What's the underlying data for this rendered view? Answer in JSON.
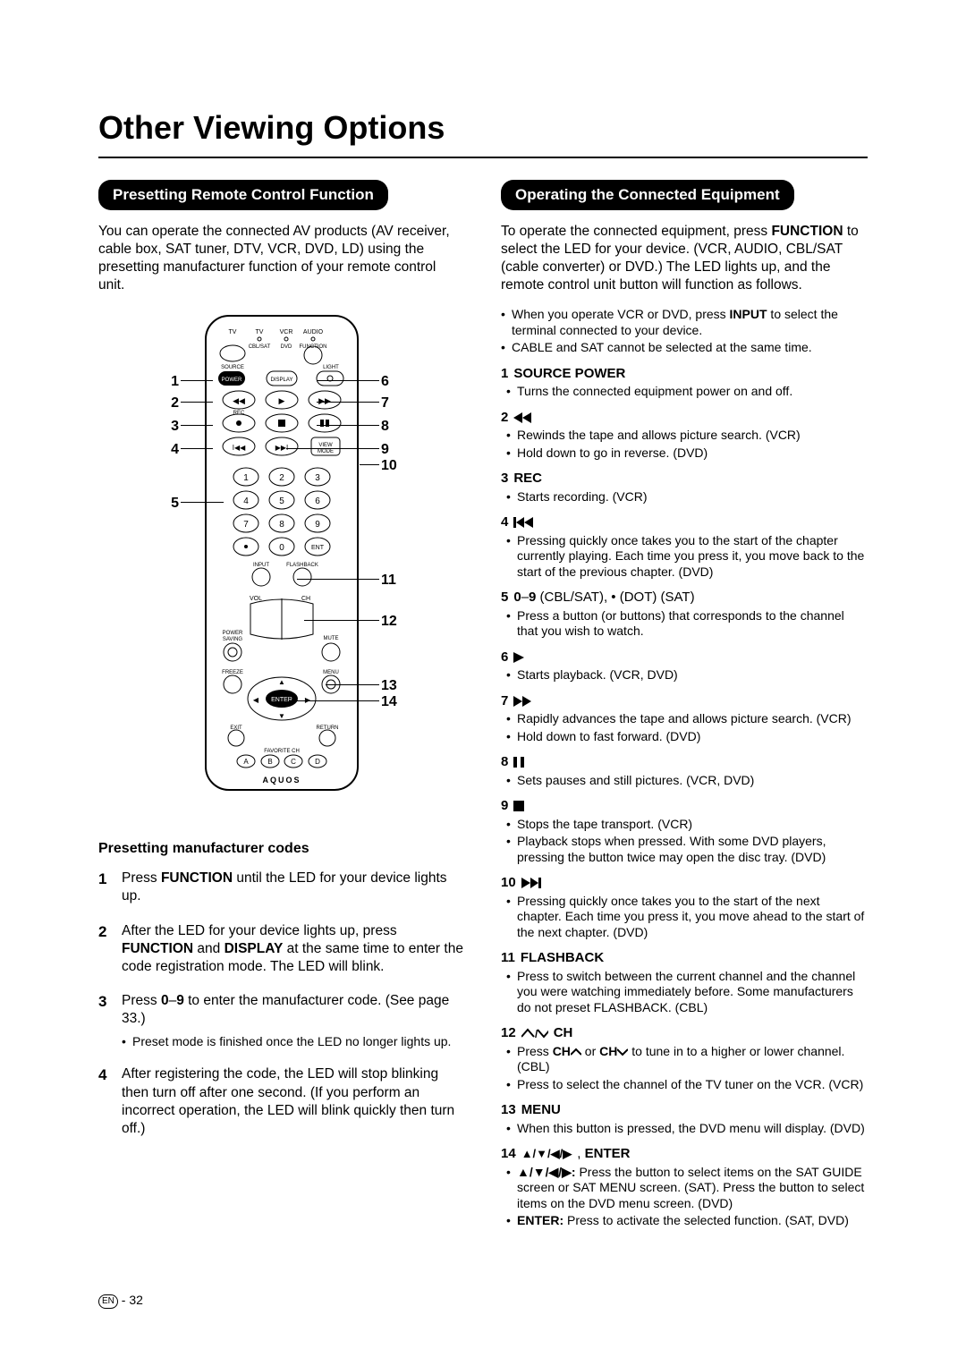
{
  "page_title": "Other Viewing Options",
  "footer": {
    "label": "EN",
    "page": "32"
  },
  "left": {
    "pill": "Presetting Remote Control Function",
    "intro": "You can operate the connected AV products (AV receiver, cable box, SAT tuner, DTV, VCR, DVD, LD) using the presetting manufacturer function of your remote control unit.",
    "callouts_left": [
      "1",
      "2",
      "3",
      "4",
      "5"
    ],
    "callouts_right": [
      "6",
      "7",
      "8",
      "9",
      "10",
      "11",
      "12",
      "13",
      "14"
    ],
    "sub_heading": "Presetting manufacturer codes",
    "steps": [
      {
        "text": "Press FUNCTION until the LED for your device lights up.",
        "bolds": [
          "FUNCTION"
        ]
      },
      {
        "text": "After the LED for your device lights up, press FUNCTION and DISPLAY at the same time to enter the code registration mode. The LED will blink.",
        "bolds": [
          "FUNCTION",
          "DISPLAY"
        ]
      },
      {
        "text": "Press 0–9 to enter the manufacturer code. (See page 33.)",
        "bolds": [
          "0",
          "9"
        ],
        "sub": [
          "Preset mode is finished once the LED no longer lights up."
        ]
      },
      {
        "text": "After registering the code, the LED will stop blinking then turn off after one second. (If you perform an incorrect operation, the LED will blink quickly then turn off.)"
      }
    ]
  },
  "right": {
    "pill": "Operating the Connected Equipment",
    "intro": "To operate the connected equipment, press FUNCTION to select the LED for your device. (VCR, AUDIO, CBL/SAT (cable converter) or DVD.) The LED lights up, and the remote control unit button will function as follows.",
    "intro_bolds": [
      "FUNCTION"
    ],
    "top_bullets": [
      "When you operate VCR or DVD, press INPUT to select the terminal connected to your device.",
      "CABLE and SAT cannot be selected at the same time."
    ],
    "top_bullets_bolds": [
      [
        "INPUT"
      ],
      []
    ],
    "entries": [
      {
        "num": "1",
        "label": "SOURCE POWER",
        "icon": "",
        "items": [
          "Turns the connected equipment power on and off."
        ]
      },
      {
        "num": "2",
        "label": "",
        "icon": "rew",
        "items": [
          "Rewinds the tape and allows picture search. (VCR)",
          "Hold down to go in reverse. (DVD)"
        ]
      },
      {
        "num": "3",
        "label": "REC",
        "icon": "",
        "items": [
          "Starts recording. (VCR)"
        ]
      },
      {
        "num": "4",
        "label": "",
        "icon": "skipback",
        "items": [
          "Pressing quickly once takes you to the start of the chapter currently playing. Each time you press it, you move back to the start of the previous chapter. (DVD)"
        ]
      },
      {
        "num": "5",
        "label": "0–9 (CBL/SAT), • (DOT) (SAT)",
        "icon": "",
        "items": [
          "Press a button (or buttons) that corresponds to the channel that you wish to watch."
        ],
        "num_bold_only_prefix": "5 "
      },
      {
        "num": "6",
        "label": "",
        "icon": "play",
        "items": [
          "Starts playback. (VCR, DVD)"
        ]
      },
      {
        "num": "7",
        "label": "",
        "icon": "ff",
        "items": [
          "Rapidly advances the tape and allows picture search. (VCR)",
          "Hold down to fast forward. (DVD)"
        ]
      },
      {
        "num": "8",
        "label": "",
        "icon": "pause",
        "items": [
          "Sets pauses and still pictures. (VCR, DVD)"
        ]
      },
      {
        "num": "9",
        "label": "",
        "icon": "stop",
        "items": [
          "Stops the tape transport. (VCR)",
          "Playback stops when pressed. With some DVD players, pressing the button twice may open the disc tray. (DVD)"
        ]
      },
      {
        "num": "10",
        "label": "",
        "icon": "skipfwd",
        "items": [
          "Pressing quickly once takes you to the start of the next chapter. Each time you press it, you move ahead to the start of the next chapter. (DVD)"
        ]
      },
      {
        "num": "11",
        "label": "FLASHBACK",
        "icon": "",
        "items": [
          "Press to switch between the current channel and the channel you were watching immediately before. Some manufacturers do not preset FLASHBACK. (CBL)"
        ]
      },
      {
        "num": "12",
        "label": "CH",
        "icon": "chupdown",
        "items": [
          "Press CH∧ or CH∨ to tune in to a higher or lower channel. (CBL)",
          "Press to select the channel of the TV tuner on the VCR. (VCR)"
        ],
        "items_bolds": [
          [
            "CH",
            "CH"
          ],
          []
        ]
      },
      {
        "num": "13",
        "label": "MENU",
        "icon": "",
        "items": [
          "When this button is pressed, the DVD menu will display. (DVD)"
        ]
      },
      {
        "num": "14",
        "label": ", ENTER",
        "icon": "arrows",
        "items": [
          "▲/▼/◀/▶: Press the button to select items on the SAT GUIDE screen or SAT MENU screen. (SAT). Press the button to select items on the DVD menu screen. (DVD)",
          "ENTER: Press to activate the selected function. (SAT, DVD)"
        ],
        "items_bolds": [
          [
            ":"
          ],
          [
            "ENTER:"
          ]
        ]
      }
    ]
  },
  "colors": {
    "bg": "#ffffff",
    "fg": "#000000"
  }
}
